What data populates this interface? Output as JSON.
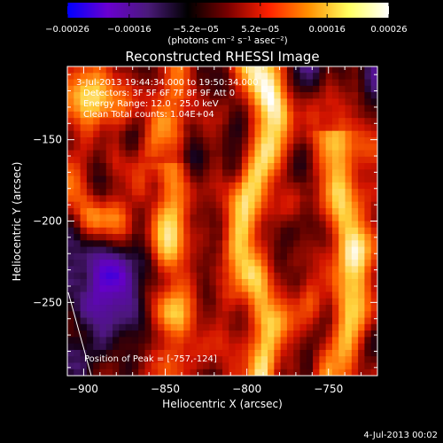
{
  "chart_data": {
    "type": "heatmap",
    "title": "Reconstructed RHESSI Image",
    "xlabel": "Heliocentric X (arcsec)",
    "ylabel": "Heliocentric Y (arcsec)",
    "xlim": [
      -910,
      -720
    ],
    "ylim": [
      -295,
      -105
    ],
    "x_ticks": [
      -900,
      -850,
      -800,
      -750
    ],
    "x_tick_labels": [
      "−900",
      "−850",
      "−800",
      "−750"
    ],
    "y_ticks": [
      -250,
      -200,
      -150
    ],
    "y_tick_labels": [
      "−250",
      "−200",
      "−150"
    ],
    "colorbar": {
      "range": [
        -0.00026,
        0.00026
      ],
      "ticks": [
        -0.00026,
        -0.00016,
        -5.2e-05,
        5.2e-05,
        0.00016,
        0.00026
      ],
      "tick_labels": [
        "−0.00026",
        "−0.00016",
        "−5.2e−05",
        "5.2e−05",
        "0.00016",
        "0.00026"
      ],
      "units_label": "(photons cm⁻² s⁻¹ asec⁻²)",
      "colors": [
        "#0000ff",
        "#6a00d0",
        "#4a1a7a",
        "#000000",
        "#7a0000",
        "#ff2000",
        "#ff9000",
        "#ffff60",
        "#ffffff"
      ]
    },
    "annotations": [
      " 3-Jul-2013 19:44:34.000 to 19:50:34.000",
      "Detectors: 3F 5F 6F 7F 8F 9F  Att 0",
      "Energy Range: 12.0 - 25.0 keV",
      "Clean     Total counts: 1.04E+04"
    ],
    "peak_label": "Position of Peak = [-757,-124]",
    "peak": [
      -757,
      -124
    ],
    "grid_cells": 48,
    "seed": 17
  },
  "footer": {
    "timestamp": "4-Jul-2013 00:02"
  }
}
